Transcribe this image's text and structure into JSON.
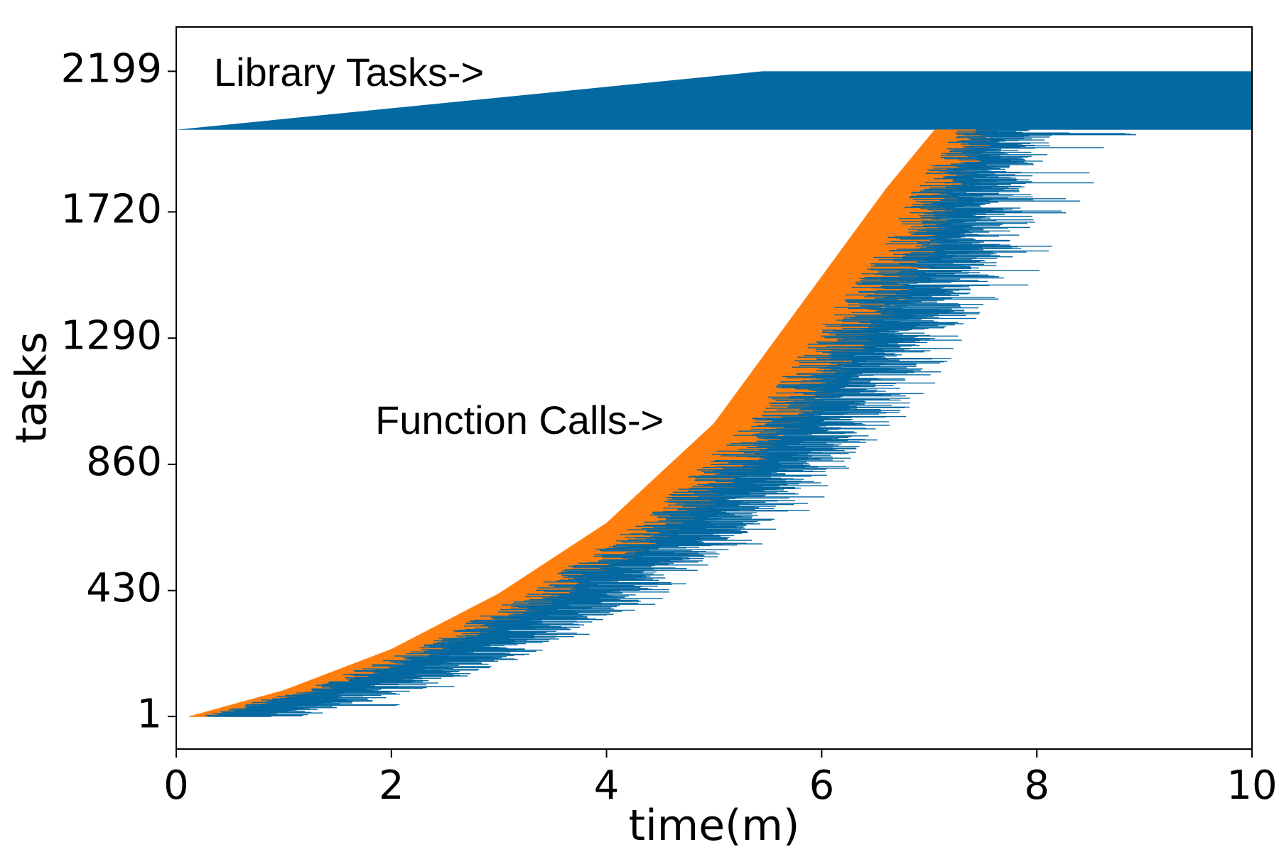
{
  "chart_data": {
    "type": "bar",
    "subtype": "task-timeline (horizontal spans)",
    "xlabel": "time(m)",
    "ylabel": "tasks",
    "xlim": [
      0,
      10
    ],
    "ylim": [
      -110,
      2350
    ],
    "xticks": [
      0,
      2,
      4,
      6,
      8,
      10
    ],
    "yticks": [
      1,
      430,
      860,
      1290,
      1720,
      2199
    ],
    "grid": false,
    "colors": {
      "library": "#0468a1",
      "wait": "#ff7f0e",
      "exec": "#0468a1"
    },
    "annotations": [
      {
        "text": "Library Tasks->",
        "x": 0.35,
        "y": 2185
      },
      {
        "text": "Function Calls->",
        "x": 1.85,
        "y": 1000
      }
    ],
    "library_tasks": {
      "task_range": [
        2000,
        2199
      ],
      "start_envelope": [
        [
          0.0,
          2000
        ],
        [
          5.45,
          2199
        ]
      ],
      "end_time": 10
    },
    "function_calls": {
      "task_range": [
        1,
        2000
      ],
      "start_curve": [
        [
          0.12,
          1
        ],
        [
          1.0,
          90
        ],
        [
          2.0,
          230
        ],
        [
          3.0,
          420
        ],
        [
          4.0,
          660
        ],
        [
          5.0,
          1000
        ],
        [
          6.0,
          1500
        ],
        [
          6.6,
          1800
        ],
        [
          7.05,
          2000
        ]
      ],
      "median_wait": [
        [
          0.12,
          0.15
        ],
        [
          2.0,
          0.4
        ],
        [
          4.0,
          0.55
        ],
        [
          6.0,
          0.65
        ],
        [
          7.05,
          0.4
        ]
      ],
      "median_exec": [
        [
          0.12,
          0.7
        ],
        [
          2.0,
          0.75
        ],
        [
          4.0,
          0.7
        ],
        [
          6.0,
          0.65
        ],
        [
          7.05,
          0.45
        ]
      ],
      "max_end": [
        [
          1.0,
          2.7
        ],
        [
          3.0,
          4.1
        ],
        [
          5.0,
          6.7
        ],
        [
          6.0,
          8.0
        ],
        [
          7.05,
          9.1
        ]
      ]
    }
  }
}
